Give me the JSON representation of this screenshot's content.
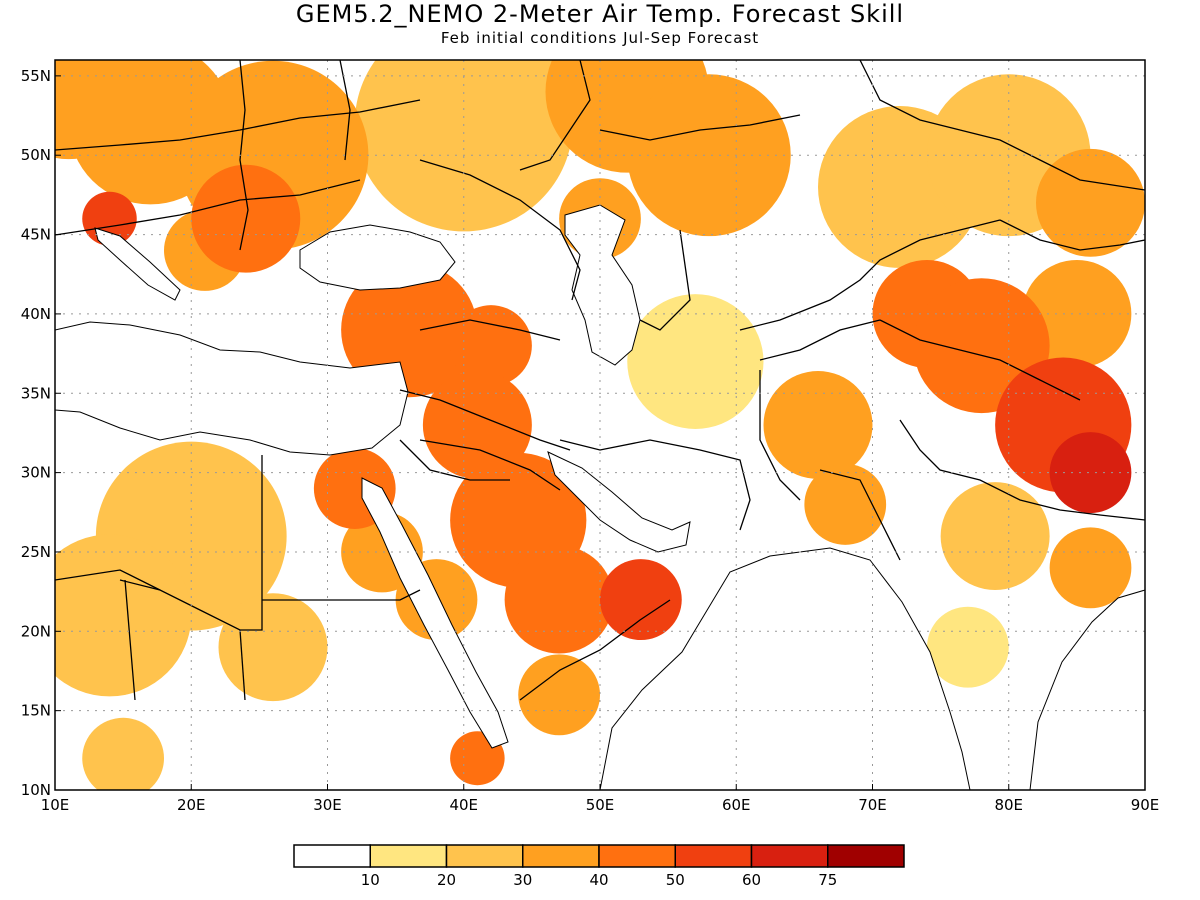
{
  "title": "GEM5.2_NEMO 2-Meter Air Temp. Forecast Skill",
  "subtitle": "Feb initial conditions  Jul-Sep Forecast",
  "colors": {
    "bin0": "#ffffff",
    "bin1": "#ffe680",
    "bin2": "#ffc34d",
    "bin3": "#ffa020",
    "bin4": "#ff7010",
    "bin5": "#f04010",
    "bin6": "#d82010",
    "bin7": "#a00000",
    "coast": "#000000",
    "grid": "#999999"
  },
  "chart_data": {
    "type": "heatmap",
    "title": "GEM5.2_NEMO 2-Meter Air Temp. Forecast Skill",
    "subtitle": "Feb initial conditions  Jul-Sep Forecast",
    "x_range": [
      10,
      90
    ],
    "y_range": [
      10,
      56
    ],
    "x_ticks": [
      "10E",
      "20E",
      "30E",
      "40E",
      "50E",
      "60E",
      "70E",
      "80E",
      "90E"
    ],
    "y_ticks": [
      "10N",
      "15N",
      "20N",
      "25N",
      "30N",
      "35N",
      "40N",
      "45N",
      "50N",
      "55N"
    ],
    "colorbar": {
      "levels": [
        "10",
        "20",
        "30",
        "40",
        "50",
        "60",
        "75"
      ]
    },
    "skill_regions": [
      {
        "lon": 11,
        "lat": 54,
        "r": 5,
        "level": 3
      },
      {
        "lon": 17,
        "lat": 52,
        "r": 6,
        "level": 3
      },
      {
        "lon": 26,
        "lat": 50,
        "r": 7,
        "level": 3
      },
      {
        "lon": 24,
        "lat": 46,
        "r": 4,
        "level": 4
      },
      {
        "lon": 14,
        "lat": 46,
        "r": 2,
        "level": 5
      },
      {
        "lon": 21,
        "lat": 44,
        "r": 3,
        "level": 3
      },
      {
        "lon": 40,
        "lat": 52,
        "r": 8,
        "level": 2
      },
      {
        "lon": 52,
        "lat": 54,
        "r": 6,
        "level": 3
      },
      {
        "lon": 58,
        "lat": 50,
        "r": 6,
        "level": 3
      },
      {
        "lon": 72,
        "lat": 48,
        "r": 6,
        "level": 2
      },
      {
        "lon": 80,
        "lat": 50,
        "r": 6,
        "level": 2
      },
      {
        "lon": 86,
        "lat": 47,
        "r": 4,
        "level": 3
      },
      {
        "lon": 50,
        "lat": 46,
        "r": 3,
        "level": 3
      },
      {
        "lon": 36,
        "lat": 39,
        "r": 5,
        "level": 4
      },
      {
        "lon": 42,
        "lat": 38,
        "r": 3,
        "level": 4
      },
      {
        "lon": 41,
        "lat": 33,
        "r": 4,
        "level": 4
      },
      {
        "lon": 44,
        "lat": 27,
        "r": 5,
        "level": 4
      },
      {
        "lon": 47,
        "lat": 22,
        "r": 4,
        "level": 4
      },
      {
        "lon": 53,
        "lat": 22,
        "r": 3,
        "level": 5
      },
      {
        "lon": 32,
        "lat": 29,
        "r": 3,
        "level": 4
      },
      {
        "lon": 34,
        "lat": 25,
        "r": 3,
        "level": 3
      },
      {
        "lon": 38,
        "lat": 22,
        "r": 3,
        "level": 3
      },
      {
        "lon": 20,
        "lat": 26,
        "r": 7,
        "level": 2
      },
      {
        "lon": 14,
        "lat": 21,
        "r": 6,
        "level": 2
      },
      {
        "lon": 26,
        "lat": 19,
        "r": 4,
        "level": 2
      },
      {
        "lon": 15,
        "lat": 12,
        "r": 3,
        "level": 2
      },
      {
        "lon": 41,
        "lat": 12,
        "r": 2,
        "level": 4
      },
      {
        "lon": 47,
        "lat": 16,
        "r": 3,
        "level": 3
      },
      {
        "lon": 57,
        "lat": 37,
        "r": 5,
        "level": 1
      },
      {
        "lon": 66,
        "lat": 33,
        "r": 4,
        "level": 3
      },
      {
        "lon": 68,
        "lat": 28,
        "r": 3,
        "level": 3
      },
      {
        "lon": 74,
        "lat": 40,
        "r": 4,
        "level": 4
      },
      {
        "lon": 78,
        "lat": 38,
        "r": 5,
        "level": 4
      },
      {
        "lon": 84,
        "lat": 33,
        "r": 5,
        "level": 5
      },
      {
        "lon": 86,
        "lat": 30,
        "r": 3,
        "level": 6
      },
      {
        "lon": 85,
        "lat": 40,
        "r": 4,
        "level": 3
      },
      {
        "lon": 79,
        "lat": 26,
        "r": 4,
        "level": 2
      },
      {
        "lon": 86,
        "lat": 24,
        "r": 3,
        "level": 3
      },
      {
        "lon": 77,
        "lat": 19,
        "r": 3,
        "level": 1
      }
    ]
  }
}
